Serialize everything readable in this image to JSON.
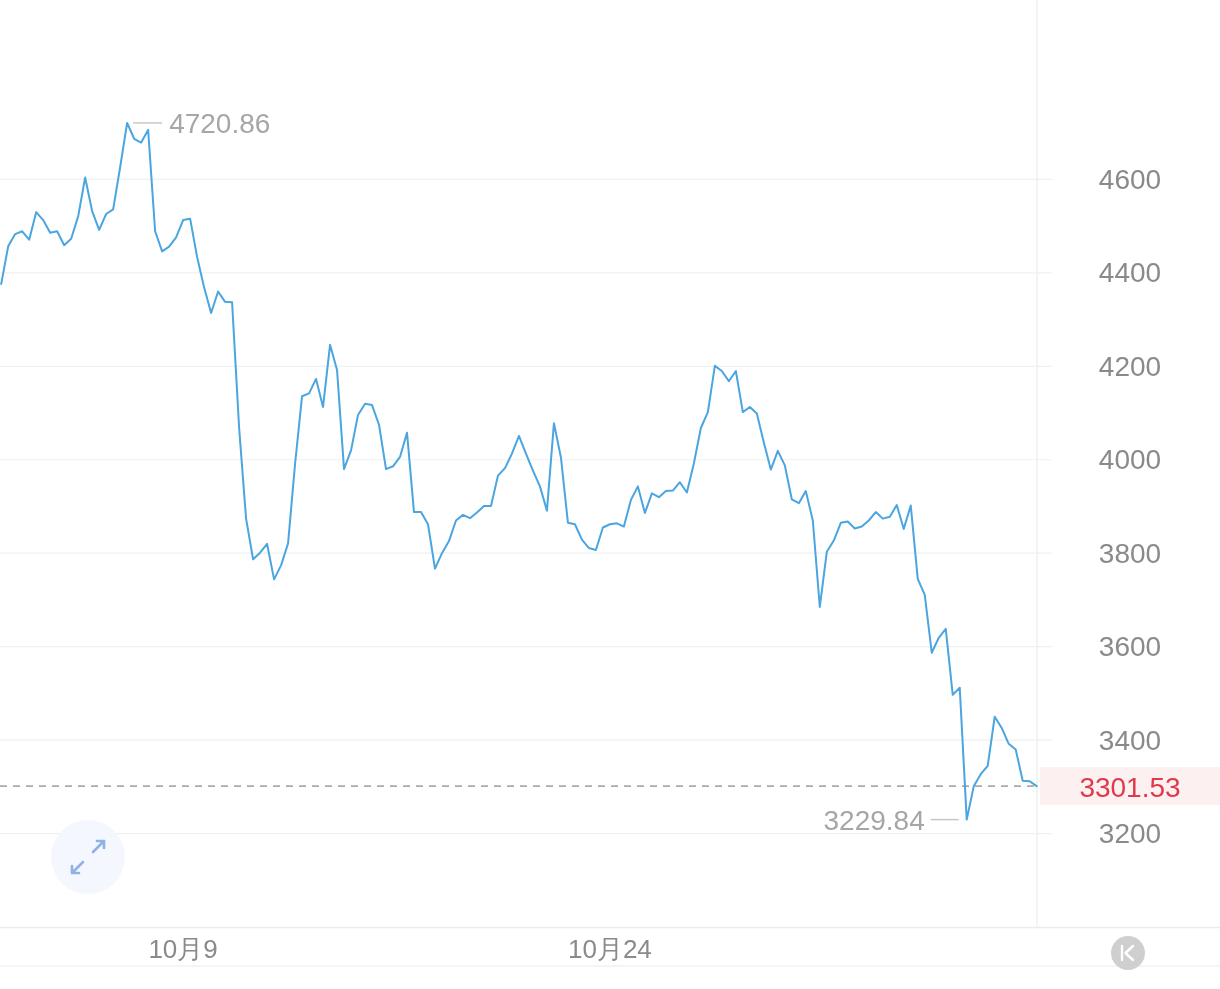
{
  "chart_data": {
    "type": "line",
    "categories": [
      null,
      null,
      null,
      null,
      null,
      null,
      null,
      null,
      null,
      null,
      null,
      null,
      null,
      null,
      null,
      null,
      null,
      null,
      null,
      null,
      null,
      null,
      null,
      null,
      null,
      null,
      "10月9",
      null,
      null,
      null,
      null,
      null,
      null,
      null,
      null,
      null,
      null,
      null,
      null,
      null,
      null,
      null,
      null,
      null,
      null,
      null,
      null,
      null,
      null,
      null,
      null,
      null,
      null,
      null,
      null,
      null,
      null,
      null,
      null,
      null,
      null,
      null,
      null,
      null,
      null,
      null,
      null,
      null,
      null,
      null,
      null,
      null,
      null,
      null,
      null,
      null,
      null,
      null,
      null,
      null,
      null,
      null,
      null,
      null,
      null,
      null,
      null,
      "10月24",
      null,
      null,
      null,
      null,
      null,
      null,
      null,
      null,
      null,
      null,
      null,
      null,
      null,
      null,
      null,
      null,
      null,
      null,
      null,
      null,
      null,
      null,
      null,
      null,
      null,
      null,
      null,
      null,
      null,
      null,
      null,
      null,
      null,
      null,
      null,
      null,
      null,
      null,
      null,
      null,
      null,
      null,
      null,
      null,
      null,
      null,
      null,
      null,
      null,
      null,
      null,
      null,
      null,
      null,
      null,
      null,
      null,
      null,
      null,
      null,
      null
    ],
    "series": [
      {
        "color": "#4aa5e0",
        "values": [
          4376,
          4457,
          4483,
          4489,
          4471,
          4530,
          4513,
          4486,
          4489,
          4459,
          4473,
          4521,
          4604,
          4532,
          4492,
          4526,
          4536,
          4626,
          4720.86,
          4687,
          4679,
          4706,
          4489,
          4446,
          4456,
          4476,
          4513,
          4516,
          4434,
          4369,
          4314,
          4360,
          4338,
          4337,
          4069,
          3874,
          3787,
          3801,
          3820,
          3744,
          3774,
          3821,
          3991,
          4136,
          4142,
          4173,
          4113,
          4246,
          4192,
          3980,
          4020,
          4096,
          4120,
          4117,
          4075,
          3980,
          3986,
          4006,
          4058,
          3888,
          3888,
          3862,
          3767,
          3800,
          3826,
          3870,
          3882,
          3875,
          3887,
          3901,
          3901,
          3966,
          3982,
          4013,
          4051,
          4013,
          3977,
          3943,
          3891,
          4078,
          4005,
          3865,
          3862,
          3829,
          3811,
          3807,
          3855,
          3862,
          3864,
          3857,
          3914,
          3943,
          3886,
          3928,
          3920,
          3933,
          3934,
          3952,
          3930,
          3992,
          4068,
          4102,
          4201,
          4190,
          4168,
          4190,
          4102,
          4113,
          4099,
          4037,
          3979,
          4019,
          3988,
          3915,
          3907,
          3933,
          3870,
          3685,
          3803,
          3827,
          3865,
          3868,
          3853,
          3857,
          3870,
          3888,
          3874,
          3878,
          3903,
          3852,
          3902,
          3745,
          3711,
          3587,
          3619,
          3638,
          3497,
          3512,
          3229.84,
          3301,
          3327,
          3345,
          3450,
          3426,
          3392,
          3380,
          3313,
          3312,
          3301.53
        ]
      }
    ],
    "ylim": [
      3000,
      4984
    ],
    "yticks": [
      3200,
      3400,
      3600,
      3800,
      4000,
      4200,
      4400,
      4600
    ],
    "grid": "y",
    "ref_lines": [
      {
        "axis": "y",
        "value": 3301.53,
        "label": "3301.53",
        "color": "#ababab",
        "line_style": "dashed"
      }
    ],
    "annotations": [
      "4720.86",
      "3229.84"
    ],
    "marker": "none",
    "line_style": "solid"
  }
}
